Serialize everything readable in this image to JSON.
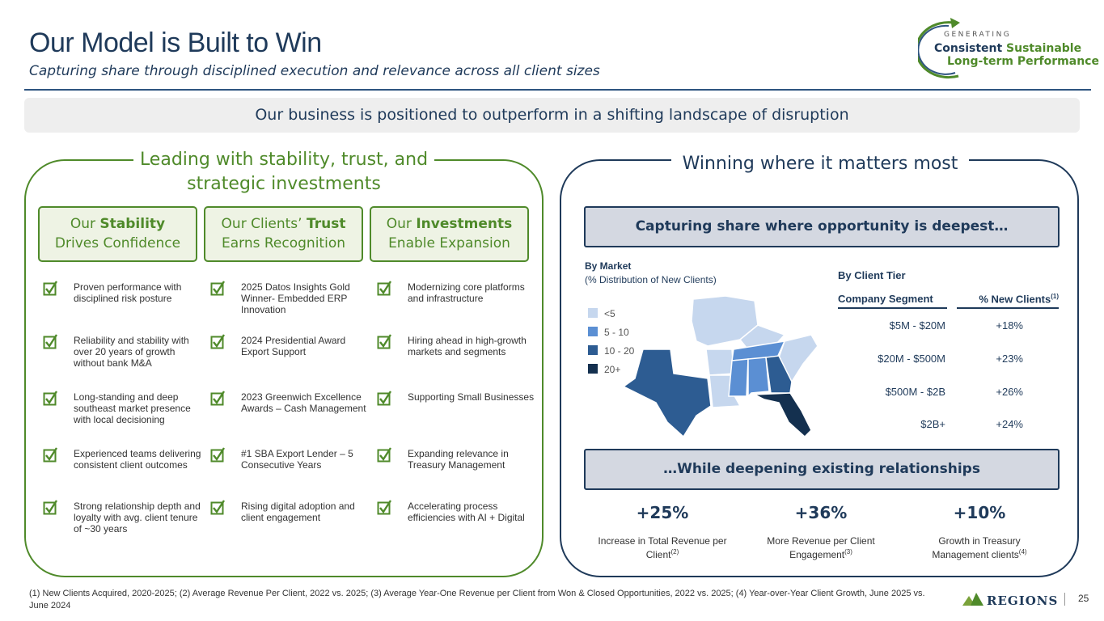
{
  "header": {
    "title": "Our Model is Built to Win",
    "subtitle": "Capturing share through disciplined execution and relevance across all client sizes"
  },
  "tagline": {
    "generating": "GENERATING",
    "consistent": "Consistent",
    "sustainable": "Sustainable",
    "line2": "Long-term Performance"
  },
  "banner": "Our business is positioned to outperform in a shifting landscape of disruption",
  "left": {
    "heading_line1": "Leading with stability, trust, and",
    "heading_line2": "strategic investments",
    "pillars": [
      {
        "pre": "Our ",
        "bold": "Stability",
        "post": "",
        "line2": "Drives Confidence"
      },
      {
        "pre": "Our Clients’ ",
        "bold": "Trust",
        "post": "",
        "line2": "Earns Recognition"
      },
      {
        "pre": "Our ",
        "bold": "Investments",
        "post": "",
        "line2": "Enable Expansion"
      }
    ],
    "columns": [
      [
        "Proven performance with disciplined risk posture",
        "Reliability and stability with over 20 years of growth without bank M&A",
        "Long-standing and deep southeast market presence with local decisioning",
        "Experienced teams delivering consistent client outcomes",
        "Strong relationship depth and loyalty with avg. client tenure of ~30 years"
      ],
      [
        "2025 Datos Insights Gold Winner- Embedded ERP Innovation",
        "2024 Presidential Award Export Support",
        "2023 Greenwich Excellence Awards – Cash Management",
        "#1 SBA Export Lender – 5 Consecutive Years",
        "Rising digital adoption and client engagement"
      ],
      [
        "Modernizing core platforms and infrastructure",
        "Hiring ahead in high-growth markets and segments",
        "Supporting Small Businesses",
        "Expanding relevance in Treasury Management",
        "Accelerating process efficiencies with AI + Digital"
      ]
    ]
  },
  "right": {
    "heading": "Winning where it matters most",
    "section1": "Capturing share where opportunity is deepest…",
    "map": {
      "title": "By Market",
      "subtitle": "(% Distribution of New Clients)",
      "legend": [
        {
          "label": "<5",
          "color": "#c6d7ee"
        },
        {
          "label": "5 - 10",
          "color": "#5b8fd3"
        },
        {
          "label": "10 - 20",
          "color": "#2d5c92"
        },
        {
          "label": "20+",
          "color": "#14304f"
        }
      ]
    },
    "tier": {
      "title": "By Client Tier",
      "col1": "Company Segment",
      "col2": "% New Clients",
      "col2_sup": "(1)",
      "rows": [
        {
          "segment": "$5M - $20M",
          "pct": "+18%"
        },
        {
          "segment": "$20M - $500M",
          "pct": "+23%"
        },
        {
          "segment": "$500M - $2B",
          "pct": "+26%"
        },
        {
          "segment": "$2B+",
          "pct": "+24%"
        }
      ]
    },
    "section2": "…While deepening existing relationships",
    "stats": [
      {
        "value": "+25%",
        "label1": "Increase in Total Revenue per",
        "label2": "Client",
        "sup": "(2)"
      },
      {
        "value": "+36%",
        "label1": "More Revenue per Client",
        "label2": "Engagement",
        "sup": "(3)"
      },
      {
        "value": "+10%",
        "label1": "Growth in Treasury",
        "label2": "Management clients",
        "sup": "(4)"
      }
    ]
  },
  "footnote": "(1) New Clients Acquired, 2020-2025; (2) Average Revenue Per Client, 2022 vs. 2025; (3) Average Year-One Revenue per Client from Won & Closed Opportunities, 2022 vs. 2025; (4) Year-over-Year Client Growth, June 2025 vs. June 2024",
  "brand": "Regions",
  "page_number": "25",
  "colors": {
    "navy": "#1f3a5a",
    "green": "#4f8a2a"
  }
}
